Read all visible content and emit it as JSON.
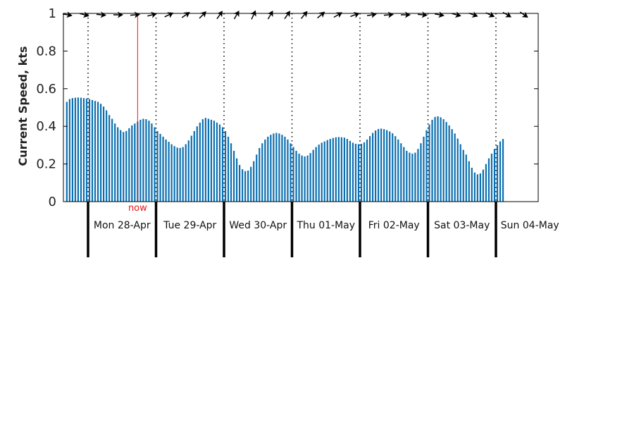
{
  "chart_data": {
    "type": "bar",
    "ylabel": "Current Speed, kts",
    "ylim": [
      0,
      1
    ],
    "y_ticks": [
      "0",
      "0.2",
      "0.4",
      "0.6",
      "0.8",
      "1"
    ],
    "interval_hours": 1,
    "first_point_hour": -9,
    "day_labels": [
      "Mon 28-Apr",
      "Tue 29-Apr",
      "Wed 30-Apr",
      "Thu 01-May",
      "Fri 02-May",
      "Sat 03-May",
      "Sun 04-May"
    ],
    "now_label": "now",
    "now_hour": 17.5,
    "colors": {
      "bars": "#0b6fb0",
      "now_line": "#e8171b",
      "axes": "#000000"
    },
    "arrow_icon": "direction-arrow-icon",
    "arrow_angles_deg": [
      10,
      15,
      5,
      0,
      -5,
      -15,
      -25,
      -35,
      -45,
      -55,
      -60,
      -65,
      -60,
      -55,
      -50,
      -40,
      -30,
      -20,
      -10,
      -5,
      0,
      5,
      10,
      15,
      20,
      25,
      30,
      35
    ],
    "values": [
      0.51,
      0.53,
      0.545,
      0.55,
      0.552,
      0.553,
      0.552,
      0.55,
      0.548,
      0.545,
      0.54,
      0.535,
      0.53,
      0.52,
      0.505,
      0.485,
      0.46,
      0.44,
      0.415,
      0.395,
      0.38,
      0.37,
      0.375,
      0.39,
      0.405,
      0.415,
      0.425,
      0.435,
      0.44,
      0.438,
      0.43,
      0.415,
      0.395,
      0.375,
      0.36,
      0.345,
      0.33,
      0.318,
      0.305,
      0.295,
      0.287,
      0.285,
      0.29,
      0.305,
      0.325,
      0.35,
      0.375,
      0.4,
      0.42,
      0.438,
      0.445,
      0.44,
      0.435,
      0.43,
      0.42,
      0.41,
      0.395,
      0.375,
      0.345,
      0.31,
      0.27,
      0.23,
      0.195,
      0.172,
      0.162,
      0.165,
      0.185,
      0.215,
      0.25,
      0.285,
      0.31,
      0.33,
      0.345,
      0.355,
      0.362,
      0.365,
      0.362,
      0.355,
      0.345,
      0.33,
      0.31,
      0.29,
      0.27,
      0.255,
      0.245,
      0.24,
      0.245,
      0.258,
      0.275,
      0.29,
      0.303,
      0.313,
      0.32,
      0.327,
      0.333,
      0.338,
      0.342,
      0.343,
      0.342,
      0.34,
      0.333,
      0.323,
      0.313,
      0.307,
      0.305,
      0.307,
      0.315,
      0.33,
      0.348,
      0.365,
      0.378,
      0.386,
      0.388,
      0.385,
      0.38,
      0.373,
      0.363,
      0.348,
      0.33,
      0.31,
      0.29,
      0.27,
      0.26,
      0.255,
      0.26,
      0.28,
      0.31,
      0.345,
      0.38,
      0.41,
      0.435,
      0.45,
      0.453,
      0.448,
      0.438,
      0.423,
      0.405,
      0.385,
      0.362,
      0.335,
      0.305,
      0.275,
      0.25,
      0.215,
      0.18,
      0.155,
      0.145,
      0.15,
      0.17,
      0.2,
      0.23,
      0.255,
      0.28,
      0.3,
      0.32,
      0.333
    ]
  }
}
